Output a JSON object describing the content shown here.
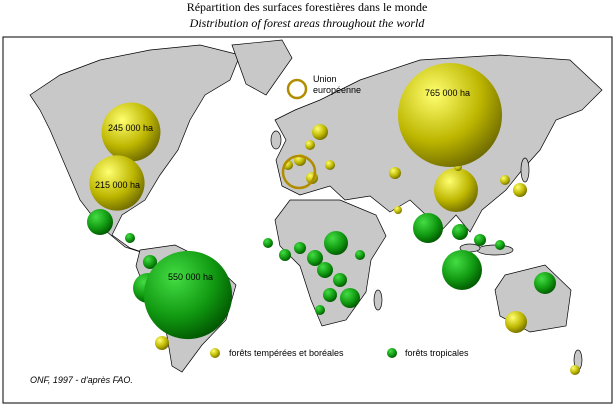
{
  "title": "Répartition des surfaces forestières dans le monde",
  "subtitle": "Distribution of forest areas throughout the world",
  "eu_legend": [
    "Union",
    "européenne"
  ],
  "legend": {
    "temperate": "forêts tempérées et boréales",
    "tropical": "forêts tropicales"
  },
  "source": "ONF, 1997 - d'après FAO.",
  "bubbles": [
    {
      "label": "765 000 ha",
      "value": 765000,
      "kind": "temperate"
    },
    {
      "label": "245 000 ha",
      "value": 245000,
      "kind": "temperate"
    },
    {
      "label": "215 000 ha",
      "value": 215000,
      "kind": "temperate"
    },
    {
      "label": "550 000 ha",
      "value": 550000,
      "kind": "tropical"
    }
  ]
}
